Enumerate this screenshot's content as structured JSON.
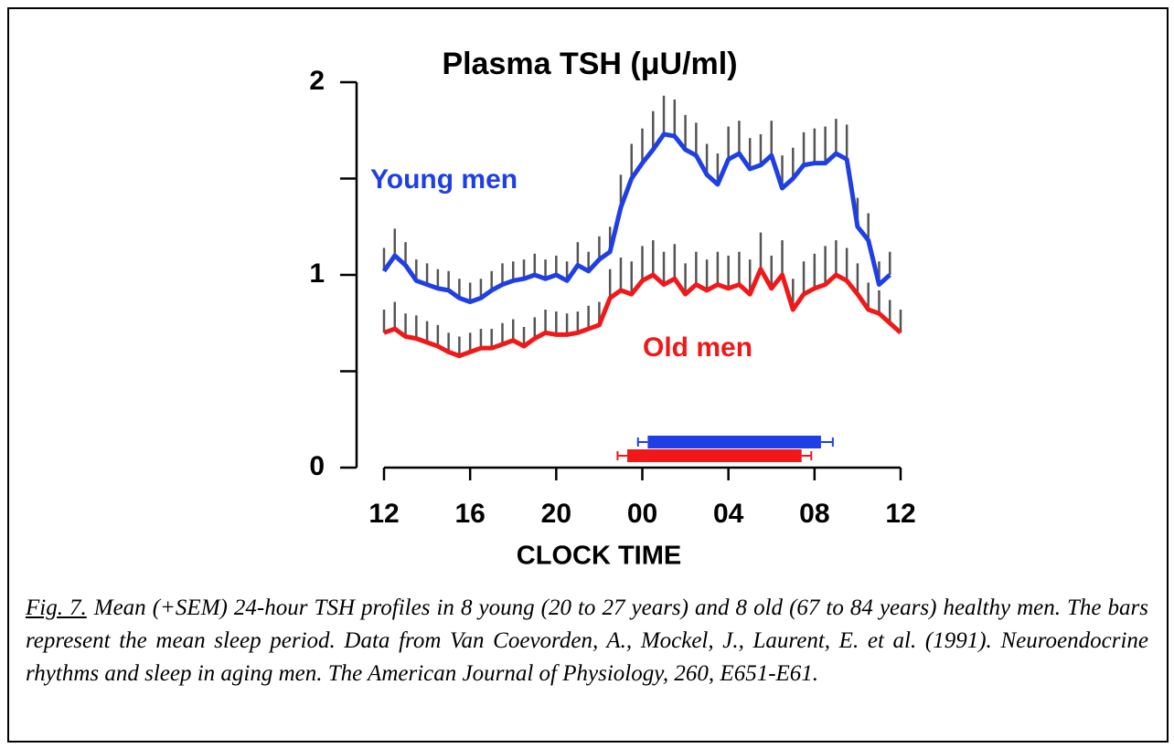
{
  "chart_data": {
    "type": "line",
    "title": "Plasma TSH (μU/ml)",
    "x_label": "CLOCK TIME",
    "xlim": [
      0,
      24
    ],
    "xticks": [
      {
        "value": 0,
        "label": "12"
      },
      {
        "value": 4,
        "label": "16"
      },
      {
        "value": 8,
        "label": "20"
      },
      {
        "value": 12,
        "label": "00"
      },
      {
        "value": 16,
        "label": "04"
      },
      {
        "value": 20,
        "label": "08"
      },
      {
        "value": 24,
        "label": "12"
      }
    ],
    "ylim": [
      0,
      2
    ],
    "yticks": [
      0,
      1,
      2
    ],
    "minor_yticks": [
      0.5,
      1.5
    ],
    "x": [
      0,
      0.5,
      1,
      1.5,
      2,
      2.5,
      3,
      3.5,
      4,
      4.5,
      5,
      5.5,
      6,
      6.5,
      7,
      7.5,
      8,
      8.5,
      9,
      9.5,
      10,
      10.5,
      11,
      11.5,
      12,
      12.5,
      13,
      13.5,
      14,
      14.5,
      15,
      15.5,
      16,
      16.5,
      17,
      17.5,
      18,
      18.5,
      19,
      19.5,
      20,
      20.5,
      21,
      21.5,
      22,
      22.5,
      23,
      23.5,
      24
    ],
    "series": [
      {
        "name": "Young men",
        "color": "#1f3fe6",
        "values": [
          1.02,
          1.1,
          1.05,
          0.97,
          0.95,
          0.93,
          0.92,
          0.88,
          0.86,
          0.88,
          0.92,
          0.95,
          0.97,
          0.98,
          1.0,
          0.98,
          1.0,
          0.97,
          1.05,
          1.02,
          1.08,
          1.12,
          1.35,
          1.5,
          1.58,
          1.65,
          1.73,
          1.72,
          1.65,
          1.62,
          1.52,
          1.47,
          1.6,
          1.63,
          1.55,
          1.57,
          1.62,
          1.45,
          1.5,
          1.57,
          1.58,
          1.58,
          1.63,
          1.6,
          1.25,
          1.18,
          0.95,
          1.0,
          null
        ],
        "errors": [
          0.12,
          0.14,
          0.12,
          0.11,
          0.11,
          0.1,
          0.1,
          0.1,
          0.1,
          0.1,
          0.1,
          0.11,
          0.1,
          0.1,
          0.11,
          0.1,
          0.1,
          0.1,
          0.12,
          0.1,
          0.12,
          0.13,
          0.17,
          0.18,
          0.18,
          0.2,
          0.2,
          0.19,
          0.18,
          0.17,
          0.16,
          0.16,
          0.17,
          0.17,
          0.16,
          0.16,
          0.18,
          0.17,
          0.16,
          0.17,
          0.18,
          0.19,
          0.18,
          0.18,
          0.15,
          0.14,
          0.12,
          0.12,
          null
        ],
        "sleep": [
          12.25,
          20.3
        ],
        "sleep_sem": [
          0.45,
          0.55
        ]
      },
      {
        "name": "Old men",
        "color": "#f01818",
        "values": [
          0.7,
          0.72,
          0.68,
          0.67,
          0.65,
          0.63,
          0.6,
          0.58,
          0.6,
          0.62,
          0.62,
          0.64,
          0.66,
          0.63,
          0.67,
          0.7,
          0.69,
          0.69,
          0.7,
          0.72,
          0.74,
          0.88,
          0.92,
          0.9,
          0.97,
          1.0,
          0.95,
          0.98,
          0.9,
          0.95,
          0.92,
          0.95,
          0.93,
          0.95,
          0.9,
          1.03,
          0.93,
          1.0,
          0.82,
          0.9,
          0.93,
          0.95,
          1.0,
          0.97,
          0.9,
          0.82,
          0.8,
          0.75,
          0.7
        ],
        "errors": [
          0.12,
          0.14,
          0.12,
          0.12,
          0.11,
          0.11,
          0.1,
          0.1,
          0.1,
          0.1,
          0.1,
          0.11,
          0.11,
          0.1,
          0.11,
          0.12,
          0.12,
          0.11,
          0.11,
          0.12,
          0.12,
          0.15,
          0.17,
          0.17,
          0.18,
          0.18,
          0.17,
          0.18,
          0.16,
          0.17,
          0.16,
          0.17,
          0.17,
          0.17,
          0.18,
          0.19,
          0.17,
          0.18,
          0.16,
          0.17,
          0.18,
          0.2,
          0.18,
          0.17,
          0.16,
          0.14,
          0.12,
          0.12,
          0.12
        ],
        "sleep": [
          11.3,
          19.4
        ],
        "sleep_sem": [
          0.45,
          0.45
        ]
      }
    ]
  },
  "caption": {
    "label": "Fig. 7.",
    "text": "Mean (+SEM) 24-hour TSH profiles in 8 young (20 to 27 years) and 8 old (67 to 84 years) healthy men. The bars represent the mean sleep period. Data from Van Coevorden, A., Mockel, J., Laurent, E. et al. (1991). Neuroendocrine rhythms and sleep in aging men. The American Journal of Physiology, 260, E651-E61."
  }
}
